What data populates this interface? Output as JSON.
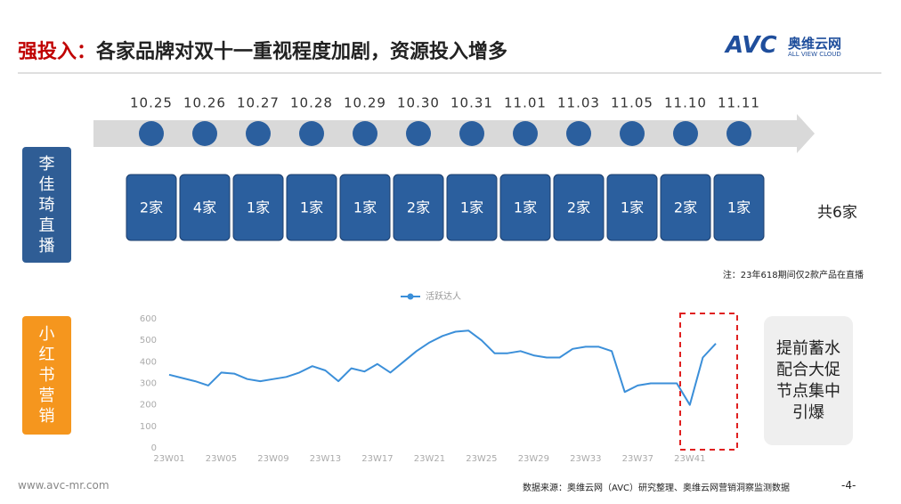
{
  "header": {
    "title_prefix": "强投入：",
    "title": "各家品牌对双十一重视程度加剧，资源投入增多",
    "logo": "AVC",
    "logo_cn": "奥维云网",
    "logo_en": "ALL VIEW CLOUD"
  },
  "timeline": {
    "dates": [
      "10.25",
      "10.26",
      "10.27",
      "10.28",
      "10.29",
      "10.30",
      "10.31",
      "11.01",
      "11.03",
      "11.05",
      "11.10",
      "11.11"
    ],
    "row_label": "李佳琦直播",
    "counts": [
      "2家",
      "4家",
      "1家",
      "1家",
      "1家",
      "2家",
      "1家",
      "1家",
      "2家",
      "1家",
      "2家",
      "1家"
    ],
    "total": "共6家",
    "note": "注：23年618期间仅2款产品在直播"
  },
  "chart_row_label": "小红书营销",
  "chart_data": {
    "type": "line",
    "categories": [
      "23W01",
      null,
      null,
      null,
      "23W05",
      null,
      null,
      null,
      "23W09",
      null,
      null,
      null,
      "23W13",
      null,
      null,
      null,
      "23W17",
      null,
      null,
      null,
      "23W21",
      null,
      null,
      null,
      "23W25",
      null,
      null,
      null,
      "23W29",
      null,
      null,
      null,
      "23W33",
      null,
      null,
      null,
      "23W37",
      null,
      null,
      null,
      "23W41",
      null,
      null
    ],
    "series": [
      {
        "name": "活跃达人",
        "color": "#3b8fd9",
        "values": [
          340,
          325,
          310,
          290,
          350,
          345,
          320,
          310,
          320,
          330,
          350,
          380,
          360,
          310,
          370,
          355,
          390,
          350,
          400,
          450,
          490,
          520,
          540,
          545,
          500,
          440,
          440,
          450,
          430,
          420,
          420,
          460,
          470,
          470,
          450,
          260,
          290,
          300,
          300,
          300,
          200,
          420,
          485
        ]
      }
    ],
    "ylim": [
      0,
      600
    ],
    "yticks": [
      0,
      100,
      200,
      300,
      400,
      500,
      600
    ],
    "grid": false,
    "legend": "top"
  },
  "callout": "提前蓄水配合大促节点集中引爆",
  "footer": {
    "site": "www.avc-mr.com",
    "source": "数据来源：奥维云网（AVC）研究整理、奥维云网营销洞察监测数据",
    "page": "-4-"
  }
}
